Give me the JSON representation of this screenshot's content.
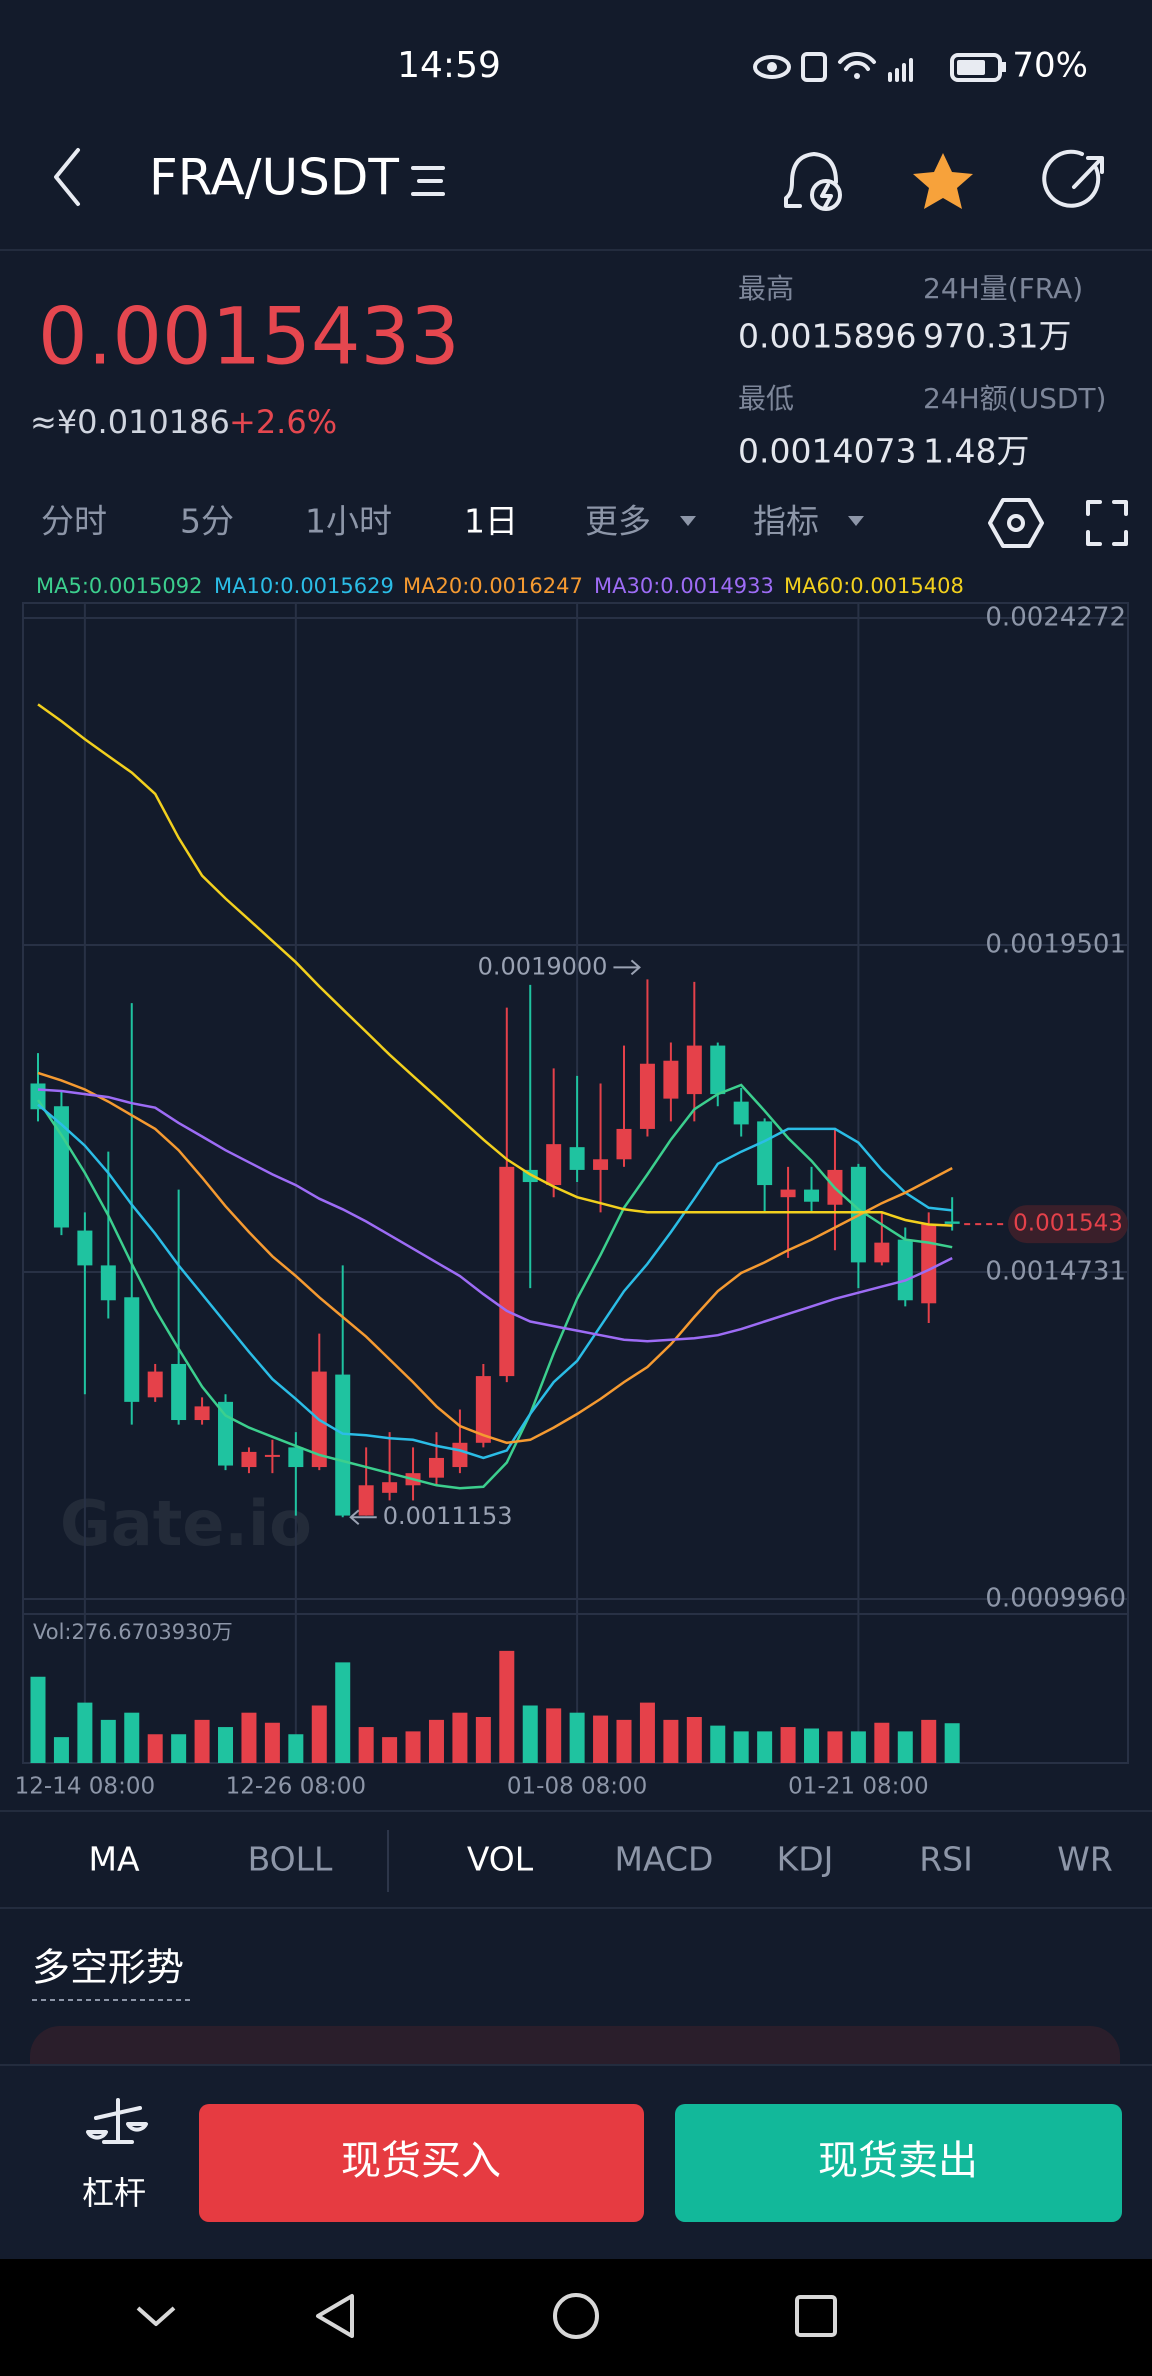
{
  "status_bar": {
    "time": "14:59",
    "battery": "70%"
  },
  "header": {
    "pair": "FRA/USDT"
  },
  "ticker": {
    "price": "0.0015433",
    "cny": "≈¥0.010186",
    "change": "+2.6%",
    "high_label": "最高",
    "high": "0.0015896",
    "vol_label": "24H量(FRA)",
    "vol": "970.31万",
    "low_label": "最低",
    "low": "0.0014073",
    "amount_label": "24H额(USDT)",
    "amount": "1.48万"
  },
  "timeframes": [
    "分时",
    "5分",
    "1小时",
    "1日",
    "更多",
    "指标"
  ],
  "chart_data": {
    "type": "candlestick",
    "categories": [
      null,
      null,
      "12-14 08:00",
      null,
      null,
      null,
      null,
      null,
      null,
      null,
      null,
      "12-26 08:00",
      null,
      null,
      null,
      null,
      null,
      null,
      null,
      null,
      null,
      null,
      null,
      "01-08 08:00",
      null,
      null,
      null,
      null,
      null,
      null,
      null,
      null,
      null,
      null,
      null,
      "01-21 08:00",
      null,
      null,
      null,
      null
    ],
    "open": [
      0.0017481,
      0.0017149,
      0.0015335,
      0.0014827,
      0.0014362,
      0.0012902,
      0.0013389,
      0.0012571,
      0.0012836,
      0.0011885,
      0.0012062,
      0.0012172,
      0.0011885,
      0.0013234,
      0.0011177,
      0.0011509,
      0.0011619,
      0.001173,
      0.0011885,
      0.0012239,
      0.0013212,
      0.001622,
      0.0015999,
      0.0016552,
      0.001622,
      0.0016375,
      0.0016818,
      0.001726,
      0.0017326,
      0.0018034,
      0.0017216,
      0.0016928,
      0.0015822,
      0.0015933,
      0.0015712,
      0.0016265,
      0.0014871,
      0.0015203,
      0.0014274,
      0.0015468
    ],
    "high": [
      0.0017924,
      0.0017371,
      0.0015601,
      0.0016486,
      0.0018654,
      0.0013389,
      0.0015933,
      0.0012902,
      0.0012947,
      0.0012172,
      0.0012283,
      0.0012394,
      0.0013831,
      0.0014827,
      0.0012172,
      0.0012394,
      0.0012172,
      0.0012394,
      0.0012725,
      0.0013389,
      0.0018587,
      0.0018919,
      0.0017702,
      0.0017592,
      0.0017481,
      0.0018034,
      0.0019,
      0.0018078,
      0.0018963,
      0.0018078,
      0.0017415,
      0.0016972,
      0.0016265,
      0.0016265,
      0.0016818,
      0.0016309,
      0.0015601,
      0.001538,
      0.0015601,
      0.0015822
    ],
    "low": [
      0.0016928,
      0.0015269,
      0.0012947,
      0.0014053,
      0.0012504,
      0.0012836,
      0.0012504,
      0.0012504,
      0.0011841,
      0.0011796,
      0.0011796,
      0.0011177,
      0.0011841,
      0.0011153,
      0.0011177,
      0.0011398,
      0.0011398,
      0.0011619,
      0.0011796,
      0.0012172,
      0.0013124,
      0.0014495,
      0.0015822,
      0.0016043,
      0.0015601,
      0.0016265,
      0.0016707,
      0.0016928,
      0.0016928,
      0.0017149,
      0.0016707,
      0.0015601,
      0.0014937,
      0.0015601,
      0.0015048,
      0.0014495,
      0.0014827,
      0.0014229,
      0.0013986,
      0.0015335
    ],
    "close": [
      0.0017105,
      0.001538,
      0.0014827,
      0.0014318,
      0.0012836,
      0.0013278,
      0.0012571,
      0.001277,
      0.0011907,
      0.0012106,
      0.0012062,
      0.0011885,
      0.0013278,
      0.0011177,
      0.0011619,
      0.0011664,
      0.0011796,
      0.0012018,
      0.0012239,
      0.0013212,
      0.0016265,
      0.0016043,
      0.0016596,
      0.001622,
      0.0016375,
      0.0016818,
      0.0017769,
      0.0017813,
      0.0018034,
      0.0017326,
      0.0016884,
      0.0015999,
      0.0015933,
      0.0015756,
      0.001622,
      0.0014871,
      0.0015159,
      0.0014318,
      0.0015424,
      0.0015433
    ],
    "up_color": "#e5414a",
    "down_color": "#1fc3a0",
    "series": [
      {
        "name": "MA5:0.0015092",
        "color": "#3ccf8e",
        "values": [
          0.0017238,
          0.0016729,
          0.0016176,
          0.0015557,
          0.0014849,
          0.0014185,
          0.001361,
          0.0013057,
          0.0012637,
          0.001246,
          0.0012327,
          0.0012194,
          0.0012062,
          0.0011973,
          0.0011885,
          0.0011796,
          0.0011708,
          0.0011619,
          0.0011575,
          0.0011597,
          0.0011951,
          0.0012659,
          0.0013544,
          0.001434,
          0.0014982,
          0.0015667,
          0.0016154,
          0.0016663,
          0.0017105,
          0.0017326,
          0.0017459,
          0.0017083,
          0.0016685,
          0.0016353,
          0.0015955,
          0.0015645,
          0.0015424,
          0.0015203,
          0.0015159,
          0.0015092
        ]
      },
      {
        "name": "MA10:0.0015629",
        "color": "#2bbde6",
        "values": [
          0.0017171,
          0.0016884,
          0.0016574,
          0.0016176,
          0.0015712,
          0.0015291,
          0.0014827,
          0.0014407,
          0.0013986,
          0.0013566,
          0.0013168,
          0.001288,
          0.0012571,
          0.0012372,
          0.001235,
          0.0012305,
          0.0012283,
          0.0012194,
          0.0012128,
          0.0012018,
          0.0012128,
          0.0012659,
          0.0013124,
          0.0013434,
          0.0013942,
          0.0014451,
          0.0014849,
          0.0015313,
          0.00158,
          0.0016309,
          0.0016486,
          0.0016641,
          0.0016818,
          0.0016818,
          0.0016818,
          0.0016618,
          0.001622,
          0.0015888,
          0.0015667,
          0.0015629
        ]
      },
      {
        "name": "MA20:0.0016247",
        "color": "#f59a31",
        "values": [
          0.0017636,
          0.0017526,
          0.0017393,
          0.0017216,
          0.0017017,
          0.0016818,
          0.0016508,
          0.001611,
          0.001569,
          0.0015313,
          0.0014959,
          0.0014672,
          0.0014362,
          0.0014074,
          0.0013787,
          0.0013455,
          0.0013124,
          0.001277,
          0.0012484,
          0.001235,
          0.0012239,
          0.0012283,
          0.001246,
          0.0012659,
          0.001288,
          0.0013124,
          0.0013344,
          0.0013676,
          0.0014074,
          0.0014451,
          0.0014716,
          0.0014871,
          0.0015048,
          0.0015203,
          0.001538,
          0.0015557,
          0.0015734,
          0.0015888,
          0.0016065,
          0.0016247
        ]
      },
      {
        "name": "MA30:0.0014933",
        "color": "#9d6cf5",
        "values": [
          0.0017393,
          0.0017371,
          0.0017326,
          0.0017282,
          0.0017194,
          0.0017127,
          0.0016906,
          0.0016707,
          0.0016508,
          0.0016331,
          0.0016154,
          0.0015999,
          0.00158,
          0.0015645,
          0.0015468,
          0.0015269,
          0.001507,
          0.0014871,
          0.0014672,
          0.0014407,
          0.0014163,
          0.0014008,
          0.0013942,
          0.0013876,
          0.0013809,
          0.0013743,
          0.0013721,
          0.0013743,
          0.0013765,
          0.0013809,
          0.0013898,
          0.0014008,
          0.0014119,
          0.0014229,
          0.001434,
          0.0014429,
          0.0014517,
          0.0014606,
          0.0014761,
          0.0014933
        ]
      },
      {
        "name": "MA60:0.0015408",
        "color": "#f2d01e",
        "values": [
          0.0023011,
          0.0022768,
          0.0022502,
          0.0022259,
          0.0022016,
          0.0021706,
          0.0021065,
          0.0020512,
          0.002018,
          0.001987,
          0.0019561,
          0.0019251,
          0.0018897,
          0.0018565,
          0.0018233,
          0.0017901,
          0.0017592,
          0.0017282,
          0.0016972,
          0.0016663,
          0.0016375,
          0.0016154,
          0.0015977,
          0.0015822,
          0.0015734,
          0.0015645,
          0.0015601,
          0.0015601,
          0.0015601,
          0.0015601,
          0.0015601,
          0.0015601,
          0.0015601,
          0.0015601,
          0.0015601,
          0.0015601,
          0.0015601,
          0.001549,
          0.0015424,
          0.0015408
        ]
      }
    ],
    "ylim": [
      0.000996,
      0.0024272
    ],
    "yticks": [
      0.0024272,
      0.0019501,
      0.0014731,
      {
        "value": 0.000996,
        "label": "0.0009960"
      }
    ],
    "grid": true,
    "max_label": {
      "value": 0.0019,
      "label": "0.0019000"
    },
    "min_label": {
      "value": 0.0011153,
      "label": "0.0011153"
    },
    "last_price": 0.001543,
    "watermark": "Gate.io",
    "volume": {
      "label": "Vol:276.6703930万",
      "ylim": [
        0,
        800
      ],
      "values": [
        600,
        180,
        420,
        300,
        350,
        200,
        200,
        300,
        250,
        350,
        280,
        200,
        400,
        700,
        250,
        180,
        220,
        300,
        350,
        320,
        780,
        400,
        380,
        350,
        330,
        300,
        420,
        300,
        320,
        260,
        220,
        220,
        250,
        240,
        220,
        220,
        280,
        220,
        300,
        276.670393
      ]
    }
  },
  "indicator_tabs": [
    "MA",
    "BOLL",
    "VOL",
    "MACD",
    "KDJ",
    "RSI",
    "WR"
  ],
  "section_title": "多空形势",
  "actions": {
    "leverage": "杠杆",
    "buy": "现货买入",
    "sell": "现货卖出"
  }
}
